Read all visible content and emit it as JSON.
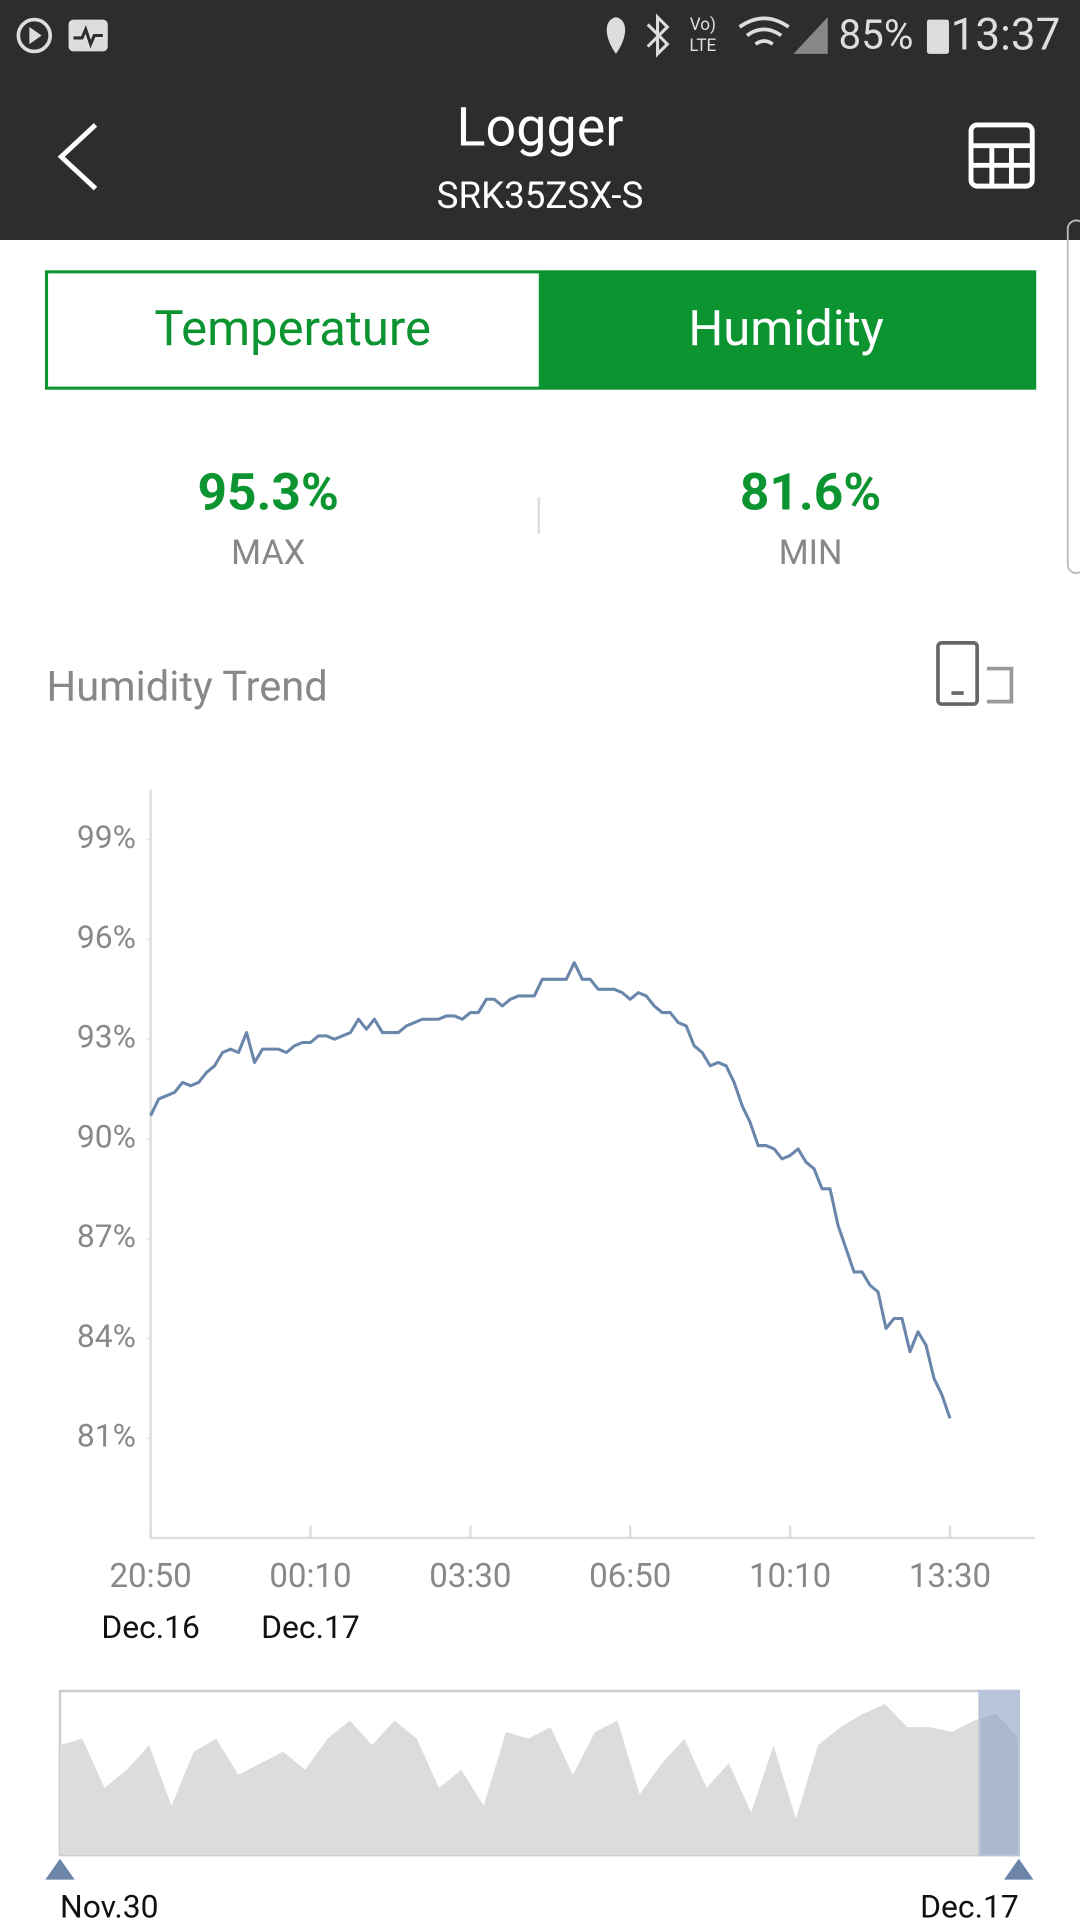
{
  "status_bar": {
    "volte_top": "Vo)",
    "volte_bottom": "LTE",
    "battery": "85%",
    "time": "13:37"
  },
  "header": {
    "title": "Logger",
    "subtitle": "SRK35ZSX-S"
  },
  "tabs": [
    "Temperature",
    "Humidity"
  ],
  "stats": [
    {
      "value": "95.3%",
      "label": "MAX"
    },
    {
      "value": "81.6%",
      "label": "MIN"
    }
  ],
  "section_title": "Humidity Trend",
  "chart_data": {
    "type": "line",
    "color": "#6a86ab",
    "x": [
      "20:50",
      "21:00",
      "21:10",
      "21:20",
      "21:30",
      "21:40",
      "21:50",
      "22:00",
      "22:10",
      "22:20",
      "22:30",
      "22:40",
      "22:50",
      "23:00",
      "23:10",
      "23:20",
      "23:30",
      "23:40",
      "23:50",
      "00:00",
      "00:10",
      "00:20",
      "00:30",
      "00:40",
      "00:50",
      "01:00",
      "01:10",
      "01:20",
      "01:30",
      "01:40",
      "01:50",
      "02:00",
      "02:10",
      "02:20",
      "02:30",
      "02:40",
      "02:50",
      "03:00",
      "03:10",
      "03:20",
      "03:30",
      "03:40",
      "03:50",
      "04:00",
      "04:10",
      "04:20",
      "04:30",
      "04:40",
      "04:50",
      "05:00",
      "05:10",
      "05:20",
      "05:30",
      "05:40",
      "05:50",
      "06:00",
      "06:10",
      "06:20",
      "06:30",
      "06:40",
      "06:50",
      "07:00",
      "07:10",
      "07:20",
      "07:30",
      "07:40",
      "07:50",
      "08:00",
      "08:10",
      "08:20",
      "08:30",
      "08:40",
      "08:50",
      "09:00",
      "09:10",
      "09:20",
      "09:30",
      "09:40",
      "09:50",
      "10:00",
      "10:10",
      "10:20",
      "10:30",
      "10:40",
      "10:50",
      "11:00",
      "11:10",
      "11:20",
      "11:30",
      "11:40",
      "11:50",
      "12:00",
      "12:10",
      "12:20",
      "12:30",
      "12:40",
      "12:50",
      "13:00",
      "13:10",
      "13:20",
      "13:30"
    ],
    "values": [
      90.7,
      91.2,
      91.3,
      91.4,
      91.7,
      91.6,
      91.7,
      92.0,
      92.2,
      92.6,
      92.7,
      92.6,
      93.2,
      92.3,
      92.7,
      92.7,
      92.7,
      92.6,
      92.8,
      92.9,
      92.9,
      93.1,
      93.1,
      93.0,
      93.1,
      93.2,
      93.6,
      93.3,
      93.6,
      93.2,
      93.2,
      93.2,
      93.4,
      93.5,
      93.6,
      93.6,
      93.6,
      93.7,
      93.7,
      93.6,
      93.8,
      93.8,
      94.2,
      94.2,
      94.0,
      94.2,
      94.3,
      94.3,
      94.3,
      94.8,
      94.8,
      94.8,
      94.8,
      95.3,
      94.8,
      94.8,
      94.5,
      94.5,
      94.5,
      94.4,
      94.2,
      94.4,
      94.3,
      94.0,
      93.8,
      93.8,
      93.5,
      93.4,
      92.8,
      92.6,
      92.2,
      92.3,
      92.2,
      91.7,
      91.0,
      90.5,
      89.8,
      89.8,
      89.7,
      89.4,
      89.5,
      89.7,
      89.3,
      89.1,
      88.5,
      88.5,
      87.4,
      86.7,
      86.0,
      86.0,
      85.6,
      85.4,
      84.3,
      84.6,
      84.6,
      83.6,
      84.2,
      83.8,
      82.8,
      82.3,
      81.6
    ],
    "xlim": [
      "20:50",
      "15:16"
    ],
    "xticks": [
      "20:50",
      "00:10",
      "03:30",
      "06:50",
      "10:10",
      "13:30"
    ],
    "xtick_dates": [
      "Dec.16",
      "Dec.17",
      null,
      null,
      null,
      null
    ],
    "ylim": [
      78,
      100.5
    ],
    "yticks": [
      {
        "value": 81,
        "label": "81%"
      },
      {
        "value": 84,
        "label": "84%"
      },
      {
        "value": 87,
        "label": "87%"
      },
      {
        "value": 90,
        "label": "90%"
      },
      {
        "value": 93,
        "label": "93%"
      },
      {
        "value": 96,
        "label": "96%"
      },
      {
        "value": 99,
        "label": "99%"
      }
    ]
  },
  "overview": {
    "values": [
      67,
      71,
      41,
      52,
      67,
      30,
      63,
      71,
      49,
      56,
      63,
      52,
      71,
      82,
      67,
      82,
      71,
      41,
      52,
      30,
      75,
      71,
      78,
      49,
      75,
      82,
      37,
      56,
      71,
      41,
      56,
      26,
      67,
      22,
      67,
      78,
      86,
      92,
      78,
      78,
      75,
      82,
      86,
      71
    ],
    "ylim": [
      0,
      100
    ],
    "start_label": "Nov.30",
    "end_label": "Dec.17"
  }
}
